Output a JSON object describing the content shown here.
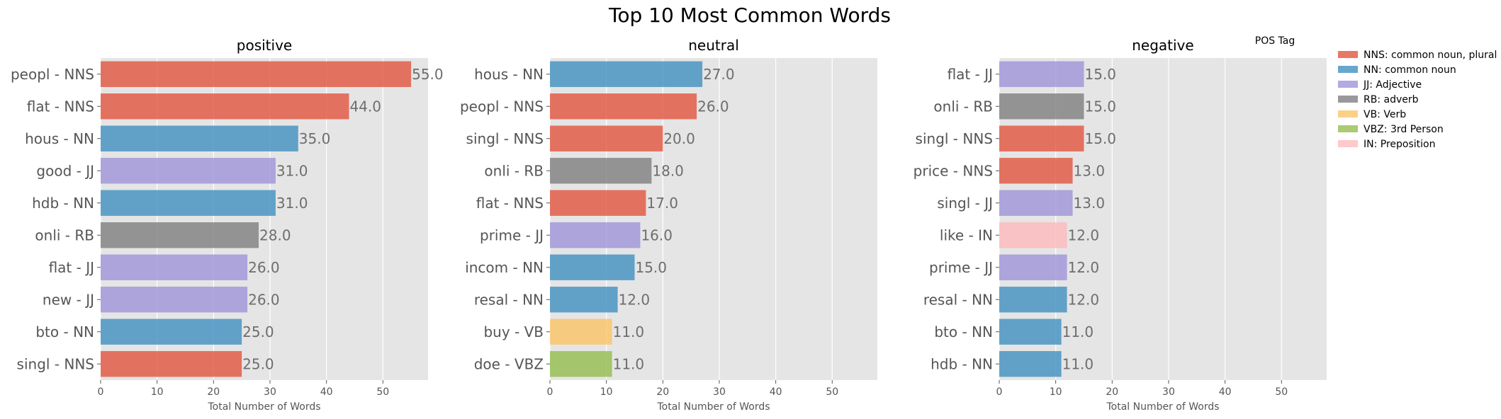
{
  "figure_title": "Top 10 Most Common Words",
  "legend": {
    "title": "POS Tag",
    "placement": "outside-right",
    "items": [
      {
        "tag": "NNS",
        "label": "NNS: common noun, plural",
        "color": "#e24a33"
      },
      {
        "tag": "NN",
        "label": "NN: common noun",
        "color": "#348abd"
      },
      {
        "tag": "JJ",
        "label": "JJ: Adjective",
        "color": "#988ed5"
      },
      {
        "tag": "RB",
        "label": "RB: adverb",
        "color": "#777777"
      },
      {
        "tag": "VB",
        "label": "VB: Verb",
        "color": "#fbc15e"
      },
      {
        "tag": "VBZ",
        "label": "VBZ: 3rd Person",
        "color": "#8eba42"
      },
      {
        "tag": "IN",
        "label": "IN: Preposition",
        "color": "#ffb5b8"
      }
    ]
  },
  "chart_data": [
    {
      "type": "bar",
      "orientation": "horizontal",
      "title": "positive",
      "xlabel": "Total Number of Words",
      "ylabel": "",
      "xlim": [
        0,
        58
      ],
      "xticks": [
        0,
        10,
        20,
        30,
        40,
        50
      ],
      "grid": true,
      "bars": [
        {
          "label": "peopl - NNS",
          "tag": "NNS",
          "value": 55,
          "value_label": "55.0"
        },
        {
          "label": "flat - NNS",
          "tag": "NNS",
          "value": 44,
          "value_label": "44.0"
        },
        {
          "label": "hous - NN",
          "tag": "NN",
          "value": 35,
          "value_label": "35.0"
        },
        {
          "label": "good - JJ",
          "tag": "JJ",
          "value": 31,
          "value_label": "31.0"
        },
        {
          "label": "hdb - NN",
          "tag": "NN",
          "value": 31,
          "value_label": "31.0"
        },
        {
          "label": "onli - RB",
          "tag": "RB",
          "value": 28,
          "value_label": "28.0"
        },
        {
          "label": "flat - JJ",
          "tag": "JJ",
          "value": 26,
          "value_label": "26.0"
        },
        {
          "label": "new - JJ",
          "tag": "JJ",
          "value": 26,
          "value_label": "26.0"
        },
        {
          "label": "bto - NN",
          "tag": "NN",
          "value": 25,
          "value_label": "25.0"
        },
        {
          "label": "singl - NNS",
          "tag": "NNS",
          "value": 25,
          "value_label": "25.0"
        }
      ]
    },
    {
      "type": "bar",
      "orientation": "horizontal",
      "title": "neutral",
      "xlabel": "Total Number of Words",
      "ylabel": "",
      "xlim": [
        0,
        58
      ],
      "xticks": [
        0,
        10,
        20,
        30,
        40,
        50
      ],
      "grid": true,
      "bars": [
        {
          "label": "hous - NN",
          "tag": "NN",
          "value": 27,
          "value_label": "27.0"
        },
        {
          "label": "peopl - NNS",
          "tag": "NNS",
          "value": 26,
          "value_label": "26.0"
        },
        {
          "label": "singl - NNS",
          "tag": "NNS",
          "value": 20,
          "value_label": "20.0"
        },
        {
          "label": "onli - RB",
          "tag": "RB",
          "value": 18,
          "value_label": "18.0"
        },
        {
          "label": "flat - NNS",
          "tag": "NNS",
          "value": 17,
          "value_label": "17.0"
        },
        {
          "label": "prime - JJ",
          "tag": "JJ",
          "value": 16,
          "value_label": "16.0"
        },
        {
          "label": "incom - NN",
          "tag": "NN",
          "value": 15,
          "value_label": "15.0"
        },
        {
          "label": "resal - NN",
          "tag": "NN",
          "value": 12,
          "value_label": "12.0"
        },
        {
          "label": "buy - VB",
          "tag": "VB",
          "value": 11,
          "value_label": "11.0"
        },
        {
          "label": "doe - VBZ",
          "tag": "VBZ",
          "value": 11,
          "value_label": "11.0"
        }
      ]
    },
    {
      "type": "bar",
      "orientation": "horizontal",
      "title": "negative",
      "xlabel": "Total Number of Words",
      "ylabel": "",
      "xlim": [
        0,
        58
      ],
      "xticks": [
        0,
        10,
        20,
        30,
        40,
        50
      ],
      "grid": true,
      "bars": [
        {
          "label": "flat - JJ",
          "tag": "JJ",
          "value": 15,
          "value_label": "15.0"
        },
        {
          "label": "onli - RB",
          "tag": "RB",
          "value": 15,
          "value_label": "15.0"
        },
        {
          "label": "singl - NNS",
          "tag": "NNS",
          "value": 15,
          "value_label": "15.0"
        },
        {
          "label": "price - NNS",
          "tag": "NNS",
          "value": 13,
          "value_label": "13.0"
        },
        {
          "label": "singl - JJ",
          "tag": "JJ",
          "value": 13,
          "value_label": "13.0"
        },
        {
          "label": "like - IN",
          "tag": "IN",
          "value": 12,
          "value_label": "12.0"
        },
        {
          "label": "prime - JJ",
          "tag": "JJ",
          "value": 12,
          "value_label": "12.0"
        },
        {
          "label": "resal - NN",
          "tag": "NN",
          "value": 12,
          "value_label": "12.0"
        },
        {
          "label": "bto - NN",
          "tag": "NN",
          "value": 11,
          "value_label": "11.0"
        },
        {
          "label": "hdb - NN",
          "tag": "NN",
          "value": 11,
          "value_label": "11.0"
        }
      ]
    }
  ]
}
